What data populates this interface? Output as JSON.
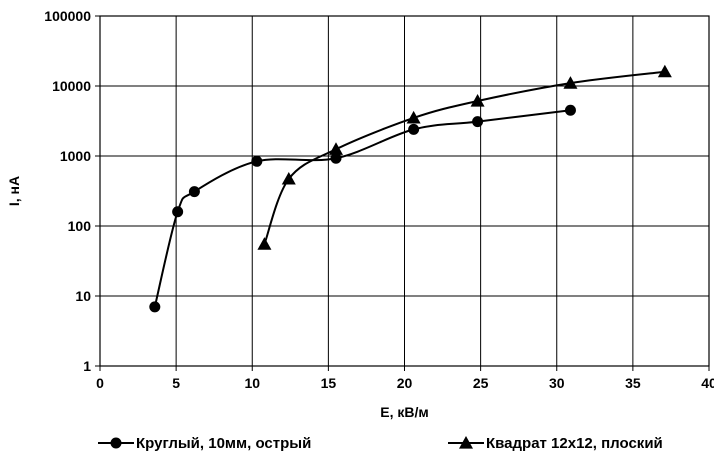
{
  "chart_data": {
    "type": "line",
    "xlabel": "E, кВ/м",
    "ylabel": "I, нА",
    "xlim": [
      0,
      40
    ],
    "ylim": [
      1,
      100000
    ],
    "yscale": "log",
    "grid": true,
    "legend_position": "bottom",
    "x_ticks": [
      "0",
      "5",
      "10",
      "15",
      "20",
      "25",
      "30",
      "35",
      "40"
    ],
    "y_ticks": [
      "1",
      "10",
      "100",
      "1000",
      "10000",
      "100000"
    ],
    "series": [
      {
        "name": "Круглый, 10мм, острый",
        "marker": "circle",
        "x": [
          3.6,
          5.1,
          6.2,
          10.3,
          15.5,
          20.6,
          24.8,
          30.9
        ],
        "y": [
          7,
          160,
          310,
          840,
          930,
          2400,
          3100,
          4500
        ]
      },
      {
        "name": "Квадрат 12х12, плоский",
        "marker": "triangle",
        "x": [
          10.8,
          12.4,
          15.5,
          20.6,
          24.8,
          30.9,
          37.1
        ],
        "y": [
          55,
          470,
          1250,
          3500,
          6100,
          11000,
          16000
        ]
      }
    ]
  }
}
